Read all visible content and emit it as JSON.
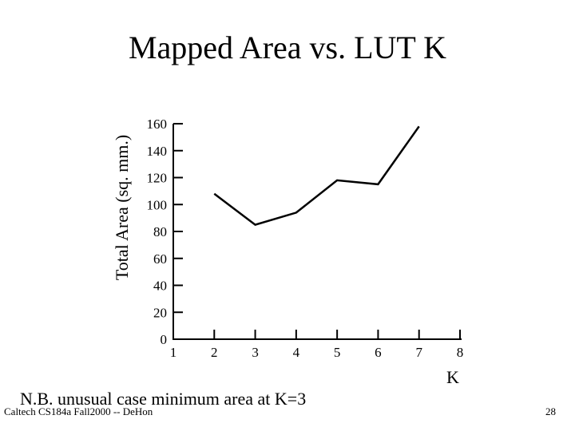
{
  "slide": {
    "title": "Mapped Area vs. LUT K",
    "note": "N.B. unusual case minimum area at K=3",
    "footer": "Caltech CS184a Fall2000 -- DeHon",
    "page_number": "28"
  },
  "chart_data": {
    "type": "line",
    "title": "",
    "xlabel": "K",
    "ylabel": "Total Area (sq. mm.)",
    "x": [
      2,
      3,
      4,
      5,
      6,
      7
    ],
    "series": [
      {
        "values": [
          108,
          85,
          94,
          118,
          115,
          158
        ]
      }
    ],
    "xticks": [
      1,
      2,
      3,
      4,
      5,
      6,
      7,
      8
    ],
    "yticks": [
      0,
      20,
      40,
      60,
      80,
      100,
      120,
      140,
      160
    ],
    "xlim": [
      1,
      8
    ],
    "ylim": [
      0,
      160
    ],
    "grid": false,
    "line_color": "#000000"
  }
}
